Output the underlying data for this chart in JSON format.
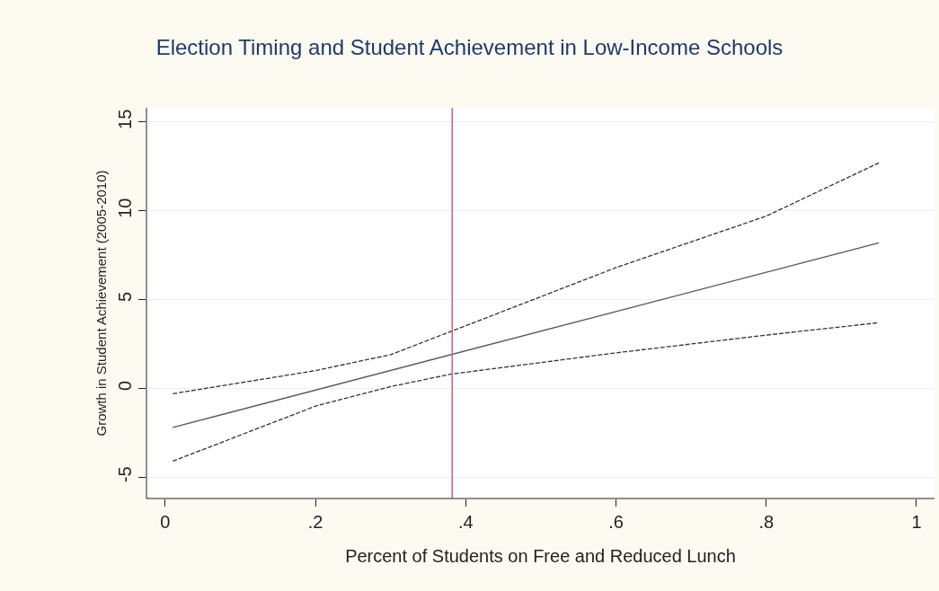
{
  "chart_data": {
    "type": "line",
    "title": "Election Timing and Student Achievement in Low-Income Schools",
    "xlabel": "Percent of Students on Free and Reduced Lunch",
    "ylabel": "Growth in Student Achievement (2005-2010)",
    "xlim": [
      -0.025,
      1.024
    ],
    "ylim": [
      -6.2,
      15.8
    ],
    "xticks": [
      {
        "value": 0,
        "label": "0"
      },
      {
        "value": 0.2,
        "label": ".2"
      },
      {
        "value": 0.4,
        "label": ".4"
      },
      {
        "value": 0.6,
        "label": ".6"
      },
      {
        "value": 0.8,
        "label": ".8"
      },
      {
        "value": 1,
        "label": "1"
      }
    ],
    "yticks": [
      -5,
      0,
      5,
      10,
      15
    ],
    "grid": "y",
    "marker": "none",
    "series": [
      {
        "color": "#555555",
        "line_style": "solid",
        "x": [
          0.01,
          0.95
        ],
        "values": [
          -2.2,
          8.2
        ]
      },
      {
        "color": "#333333",
        "line_style": "dashed",
        "x": [
          0.01,
          0.2,
          0.3,
          0.38,
          0.6,
          0.8,
          0.95
        ],
        "values": [
          -0.3,
          1.0,
          1.9,
          3.2,
          6.8,
          9.7,
          12.7
        ]
      },
      {
        "color": "#333333",
        "line_style": "dashed",
        "x": [
          0.01,
          0.2,
          0.3,
          0.38,
          0.6,
          0.8,
          0.95
        ],
        "values": [
          -4.1,
          -1.0,
          0.1,
          0.8,
          2.0,
          3.0,
          3.7
        ]
      }
    ],
    "ref_lines": [
      {
        "axis": "x",
        "value": 0.382,
        "color": "#d06080"
      }
    ]
  }
}
